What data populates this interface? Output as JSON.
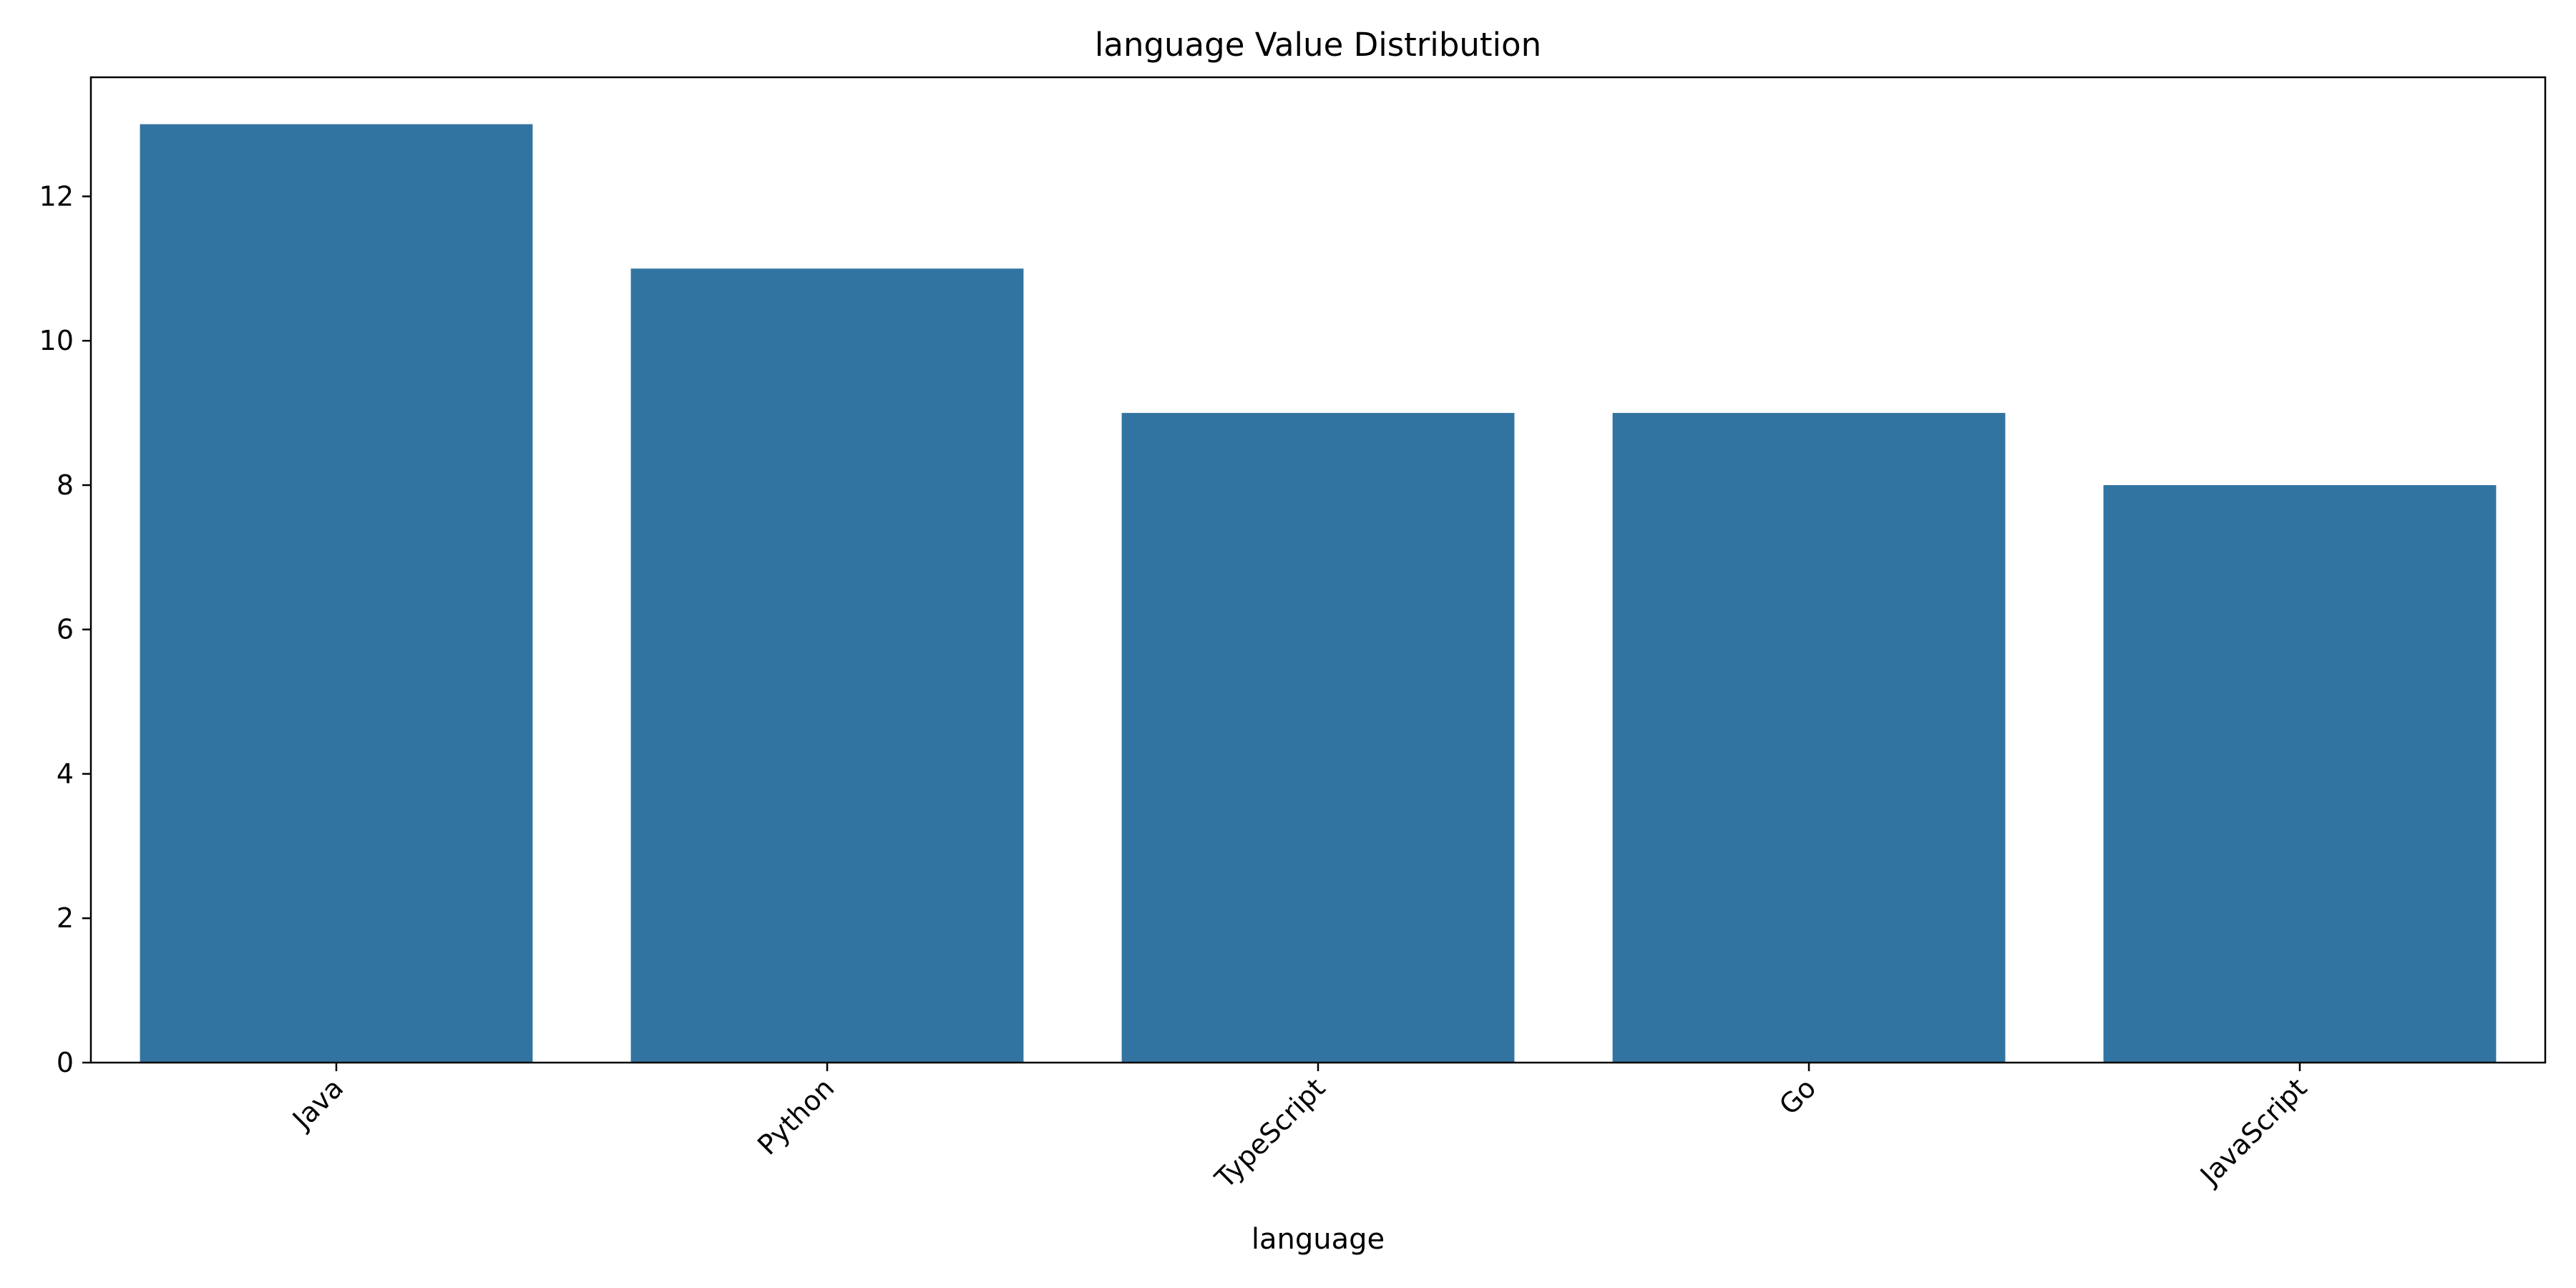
{
  "chart_data": {
    "type": "bar",
    "title": "language Value Distribution",
    "xlabel": "language",
    "ylabel": "",
    "categories": [
      "Java",
      "Python",
      "TypeScript",
      "Go",
      "JavaScript"
    ],
    "values": [
      13,
      11,
      9,
      9,
      8
    ],
    "ylim": [
      0,
      13.65
    ],
    "yticks": [
      0,
      2,
      4,
      6,
      8,
      10,
      12
    ],
    "bar_color": "#3274a1",
    "grid": false,
    "legend": "none"
  }
}
